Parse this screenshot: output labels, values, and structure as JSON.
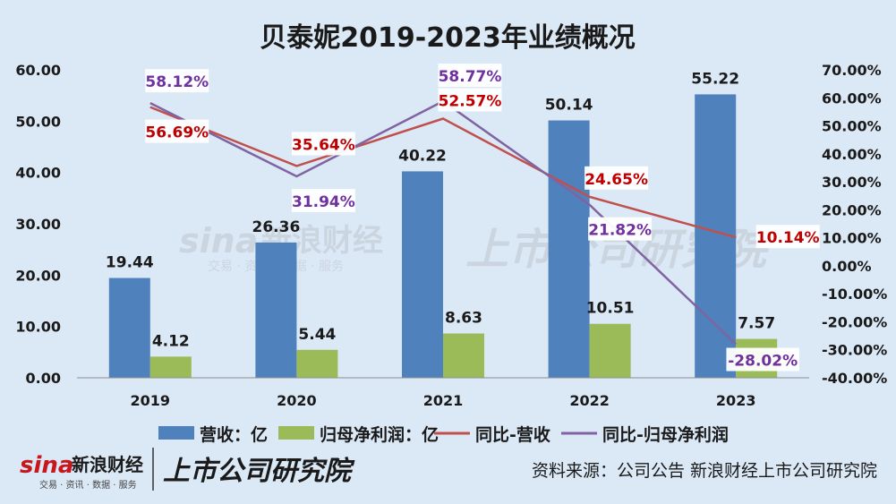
{
  "chart_data": {
    "type": "bar",
    "title": "贝泰妮2019-2023年业绩概况",
    "categories": [
      "2019",
      "2020",
      "2021",
      "2022",
      "2023"
    ],
    "series": [
      {
        "name": "营收：亿",
        "kind": "bar",
        "axis": "left",
        "color": "#4f81bd",
        "values": [
          19.44,
          26.36,
          40.22,
          50.14,
          55.22
        ],
        "labels": [
          "19.44",
          "26.36",
          "40.22",
          "50.14",
          "55.22"
        ]
      },
      {
        "name": "归母净利润：亿",
        "kind": "bar",
        "axis": "left",
        "color": "#9bbb59",
        "values": [
          4.12,
          5.44,
          8.63,
          10.51,
          7.57
        ],
        "labels": [
          "4.12",
          "5.44",
          "8.63",
          "10.51",
          "7.57"
        ]
      },
      {
        "name": "同比-营收",
        "kind": "line",
        "axis": "right",
        "color": "#c0504d",
        "label_color": "#c00000",
        "values": [
          56.69,
          35.64,
          52.57,
          24.65,
          10.14
        ],
        "labels": [
          "56.69%",
          "35.64%",
          "52.57%",
          "24.65%",
          "10.14%"
        ]
      },
      {
        "name": "同比-归母净利润",
        "kind": "line",
        "axis": "right",
        "color": "#8064a2",
        "label_color": "#7030a0",
        "values": [
          58.12,
          31.94,
          58.77,
          21.82,
          -28.02
        ],
        "labels": [
          "58.12%",
          "31.94%",
          "58.77%",
          "21.82%",
          "-28.02%"
        ]
      }
    ],
    "y_left": {
      "min": 0,
      "max": 60,
      "step": 10,
      "ticks": [
        "0.00",
        "10.00",
        "20.00",
        "30.00",
        "40.00",
        "50.00",
        "60.00"
      ]
    },
    "y_right": {
      "min": -40,
      "max": 70,
      "step": 10,
      "ticks": [
        "-40.00%",
        "-30.00%",
        "-20.00%",
        "-10.00%",
        "0.00%",
        "10.00%",
        "20.00%",
        "30.00%",
        "40.00%",
        "50.00%",
        "60.00%",
        "70.00%"
      ]
    },
    "legend_position": "bottom",
    "grid": false
  },
  "watermark": {
    "sina_logo": "sina",
    "sina_text": "新浪财经",
    "sina_sub": "交易 · 资讯 · 数据 · 服务",
    "research": "上市公司研究院"
  },
  "footer": {
    "logo_sina": "sina",
    "logo_text": "新浪财经",
    "logo_sub": "交易 · 资讯 · 数据 · 服务",
    "brand": "上市公司研究院",
    "source": "资料来源：公司公告 新浪财经上市公司研究院"
  },
  "colors": {
    "background": "#dbe8f5",
    "axis": "#7f7f7f",
    "text": "#1a1a1a"
  }
}
